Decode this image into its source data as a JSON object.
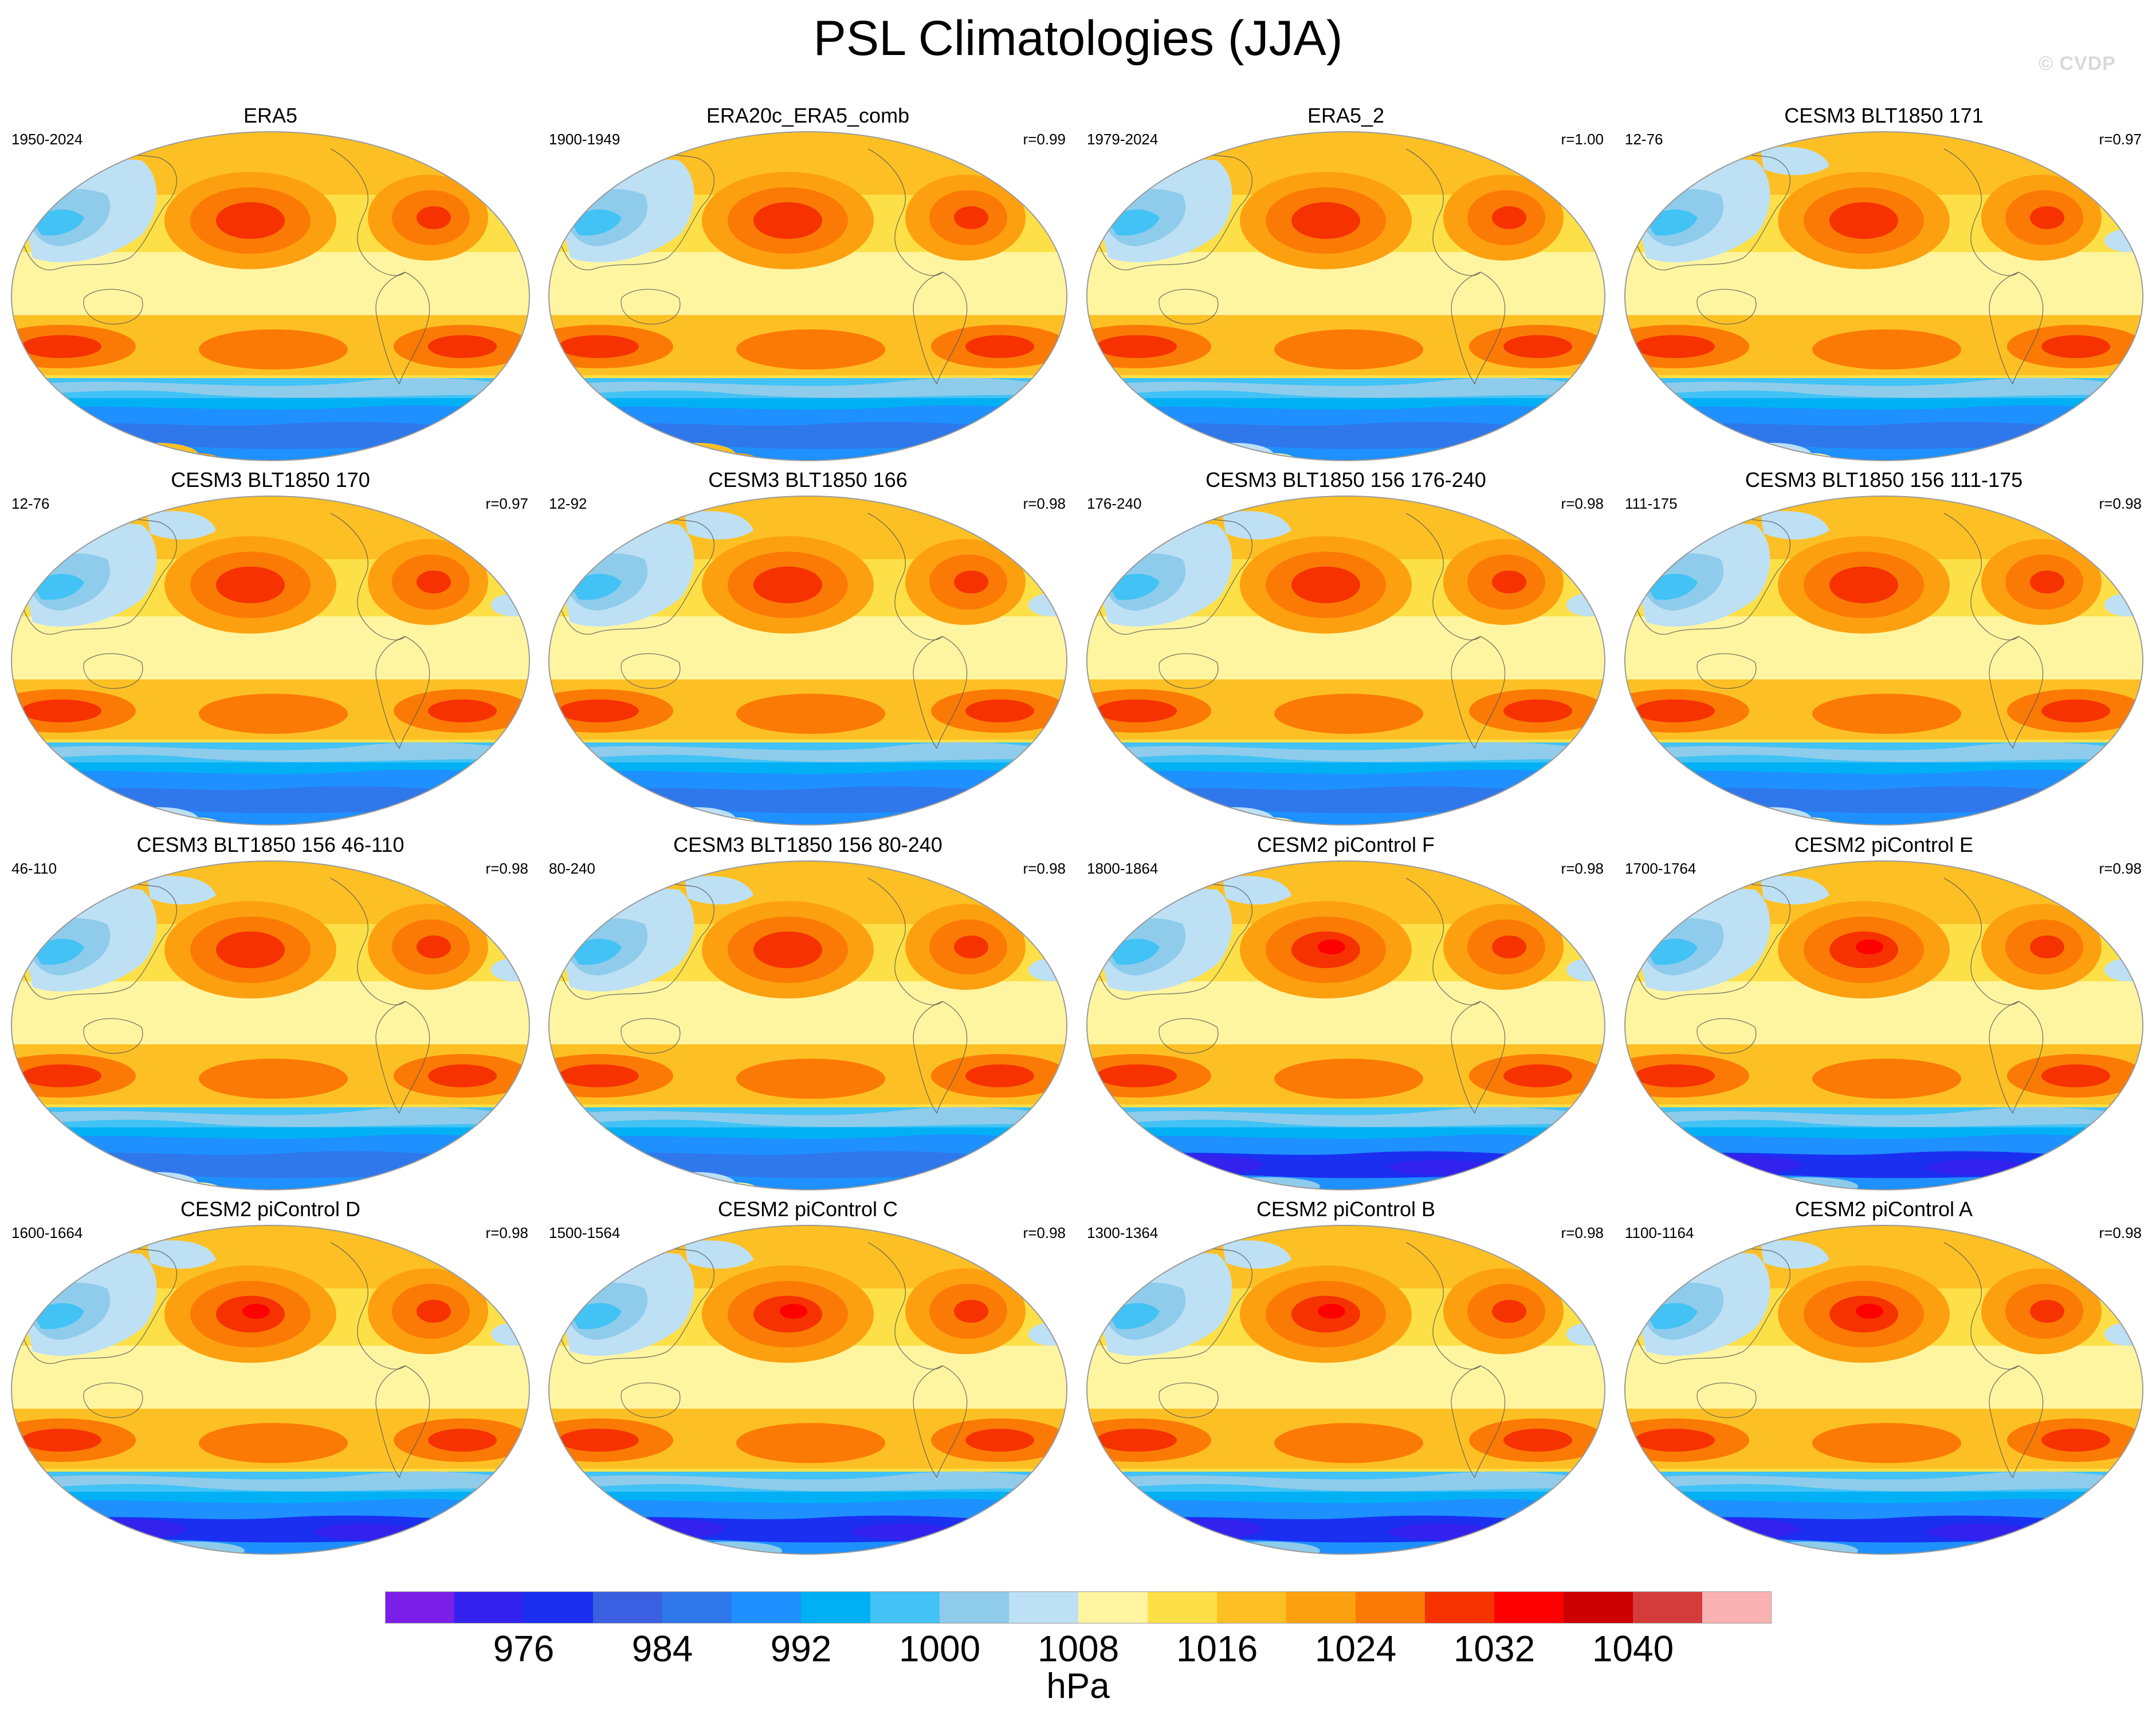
{
  "title": "PSL Climatologies (JJA)",
  "watermark": "© CVDP",
  "chart_data": {
    "type": "heatmap",
    "title": "PSL Climatologies (JJA)",
    "units": "hPa",
    "colorbar": {
      "ticks": [
        "976",
        "984",
        "992",
        "1000",
        "1008",
        "1016",
        "1024",
        "1032",
        "1040"
      ],
      "levels": [
        972,
        976,
        980,
        984,
        988,
        992,
        996,
        1000,
        1004,
        1008,
        1012,
        1016,
        1020,
        1024,
        1028,
        1032,
        1036,
        1040
      ],
      "colors": [
        "#7b1fe8",
        "#3322ee",
        "#1a2ff0",
        "#3a5fe0",
        "#2f78eb",
        "#1e90ff",
        "#00b0f5",
        "#42c2f5",
        "#8fcceb",
        "#bde0f5",
        "#fff5a0",
        "#fde047",
        "#fdc024",
        "#fda010",
        "#fb7a05",
        "#f53200",
        "#ff0000",
        "#cc0000",
        "#d43c3c",
        "#fbb2b2"
      ]
    },
    "panels": [
      {
        "name": "ERA5",
        "years": "1950-2024",
        "corr": ""
      },
      {
        "name": "ERA20c_ERA5_comb",
        "years": "1900-1949",
        "corr": "r=0.99"
      },
      {
        "name": "ERA5_2",
        "years": "1979-2024",
        "corr": "r=1.00"
      },
      {
        "name": "CESM3 BLT1850 171",
        "years": "12-76",
        "corr": "r=0.97"
      },
      {
        "name": "CESM3 BLT1850 170",
        "years": "12-76",
        "corr": "r=0.97"
      },
      {
        "name": "CESM3 BLT1850 166",
        "years": "12-92",
        "corr": "r=0.98"
      },
      {
        "name": "CESM3 BLT1850 156 176-240",
        "years": "176-240",
        "corr": "r=0.98"
      },
      {
        "name": "CESM3 BLT1850 156 111-175",
        "years": "111-175",
        "corr": "r=0.98"
      },
      {
        "name": "CESM3 BLT1850 156 46-110",
        "years": "46-110",
        "corr": "r=0.98"
      },
      {
        "name": "CESM3 BLT1850 156 80-240",
        "years": "80-240",
        "corr": "r=0.98"
      },
      {
        "name": "CESM2 piControl F",
        "years": "1800-1864",
        "corr": "r=0.98"
      },
      {
        "name": "CESM2 piControl E",
        "years": "1700-1764",
        "corr": "r=0.98"
      },
      {
        "name": "CESM2 piControl D",
        "years": "1600-1664",
        "corr": "r=0.98"
      },
      {
        "name": "CESM2 piControl C",
        "years": "1500-1564",
        "corr": "r=0.98"
      },
      {
        "name": "CESM2 piControl B",
        "years": "1300-1364",
        "corr": "r=0.98"
      },
      {
        "name": "CESM2 piControl A",
        "years": "1100-1164",
        "corr": "r=0.98"
      }
    ]
  }
}
